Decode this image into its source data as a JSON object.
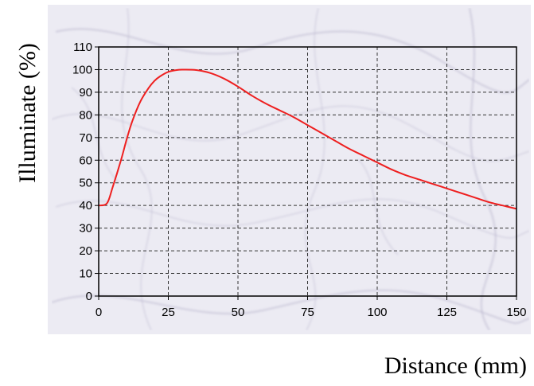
{
  "colors": {
    "background": "#ffffff",
    "panel": "#ecebf3",
    "marble_vein": "#b9b6cd",
    "plot_border": "#000000",
    "grid": "#333333",
    "series": "#ee1f1f"
  },
  "chart_data": {
    "type": "line",
    "title": "",
    "xlabel": "Distance (mm)",
    "ylabel": "Illuminate (%)",
    "xlim": [
      0,
      150
    ],
    "ylim": [
      0,
      110
    ],
    "xticks": [
      0,
      25,
      50,
      75,
      100,
      125,
      150
    ],
    "yticks": [
      0,
      10,
      20,
      30,
      40,
      50,
      60,
      70,
      80,
      90,
      100,
      110
    ],
    "grid": true,
    "legend": "none",
    "series": [
      {
        "color": "#ee1f1f",
        "x": [
          0,
          3,
          5,
          8,
          10,
          12,
          15,
          18,
          20,
          22,
          25,
          28,
          30,
          35,
          40,
          45,
          50,
          55,
          60,
          65,
          70,
          75,
          80,
          85,
          90,
          95,
          100,
          105,
          110,
          115,
          120,
          125,
          130,
          135,
          140,
          145,
          150
        ],
        "y": [
          40,
          41,
          48,
          60,
          69,
          77,
          86,
          92,
          95,
          97,
          99,
          99.8,
          100,
          99.8,
          98.5,
          96,
          92.5,
          88.5,
          85,
          82,
          79,
          75.5,
          72,
          68.5,
          65,
          62,
          59,
          56,
          53.5,
          51.5,
          49.5,
          47.5,
          45.5,
          43.5,
          41.5,
          40,
          38.5
        ]
      }
    ]
  }
}
